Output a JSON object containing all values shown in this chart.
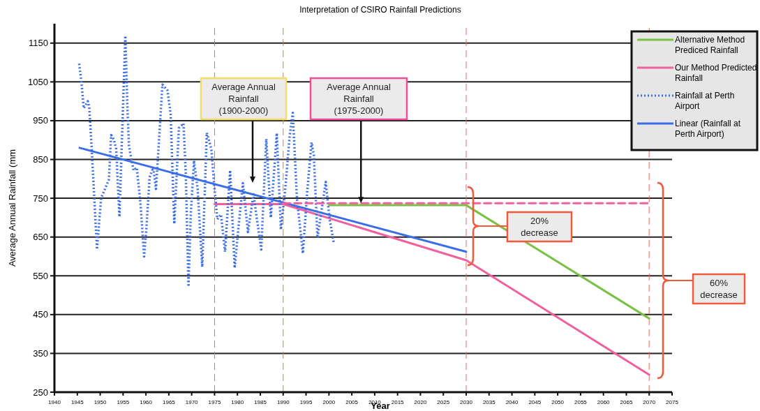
{
  "chart_data": {
    "type": "line",
    "title": "Interpretation of CSIRO Rainfall Predictions",
    "xlabel": "Year",
    "ylabel": "Average Annual Rainfall (mm",
    "xlim": [
      1940,
      2075
    ],
    "xticks": [
      1940,
      1945,
      1950,
      1955,
      1960,
      1965,
      1970,
      1975,
      1980,
      1985,
      1990,
      1995,
      2000,
      2005,
      2010,
      2015,
      2020,
      2025,
      2030,
      2035,
      2040,
      2045,
      2050,
      2055,
      2060,
      2065,
      2070,
      2075
    ],
    "ylim": [
      250,
      1200
    ],
    "yticks": [
      250,
      350,
      450,
      550,
      650,
      750,
      850,
      950,
      1050,
      1150
    ],
    "grid": "y",
    "legend": "top right",
    "series": [
      {
        "name": "Alternative Method Prediced Rainfall",
        "color": "#7ac143",
        "line_style": "solid",
        "x": [
          2000,
          2030,
          2070
        ],
        "values": [
          732,
          732,
          440
        ]
      },
      {
        "name": "Our Method Predicted Rainfall",
        "color": "#f0609e",
        "line_style": "solid",
        "x": [
          1975,
          1990,
          2030,
          2070
        ],
        "values": [
          735,
          735,
          590,
          295
        ]
      },
      {
        "name": "Rainfall at Perth Airport",
        "color": "#3a6ee8",
        "line_style": "dotted",
        "x": [
          1945.4,
          1945.9,
          1946.4,
          1947.3,
          1947.6,
          1948.1,
          1949.3,
          1950.2,
          1951.9,
          1952.4,
          1953.0,
          1953.5,
          1954.2,
          1954.7,
          1955.5,
          1956.0,
          1956.3,
          1957.3,
          1958.0,
          1958.8,
          1959.6,
          1960.1,
          1960.8,
          1961.6,
          1962.2,
          1962.9,
          1963.6,
          1964.7,
          1965.4,
          1965.9,
          1966.2,
          1967.2,
          1968.2,
          1968.7,
          1969.3,
          1969.8,
          1970.5,
          1971.3,
          1972.3,
          1973.3,
          1974.3,
          1974.9,
          1975.6,
          1976.4,
          1977.3,
          1978.4,
          1979.4,
          1980.2,
          1981.2,
          1982.3,
          1983.5,
          1985.2,
          1986.3,
          1987.3,
          1988.6,
          1989.5,
          1990.5,
          1991.4,
          1992.1,
          1993.0,
          1994.3,
          1995.2,
          1996.2,
          1996.7,
          1997.5,
          1999.3,
          2000.1,
          2001.1
        ],
        "values": [
          1097,
          1049,
          982,
          1000,
          985,
          889,
          618,
          750,
          798,
          913,
          901,
          877,
          702,
          883,
          1169,
          967,
          883,
          822,
          829,
          738,
          600,
          672,
          804,
          829,
          774,
          907,
          1043,
          1028,
          967,
          786,
          684,
          931,
          943,
          816,
          522,
          708,
          847,
          774,
          573,
          919,
          877,
          786,
          696,
          708,
          612,
          822,
          570,
          672,
          789,
          663,
          760,
          618,
          903,
          700,
          918,
          669,
          780,
          909,
          970,
          750,
          608,
          760,
          894,
          862,
          648,
          792,
          700,
          632
        ]
      },
      {
        "name": "Linear (Rainfall at Perth Airport)",
        "color": "#3a6ee8",
        "line_style": "solid",
        "x": [
          1945.5,
          2030
        ],
        "values": [
          880,
          612
        ]
      },
      {
        "color": "#f0609e",
        "line_style": "dashed",
        "x": [
          1990,
          2070
        ],
        "values": [
          737,
          737
        ]
      }
    ],
    "ref_lines": [
      {
        "axis": "x",
        "value": 1975,
        "color": "#f06a5a",
        "line_style": "dashed"
      },
      {
        "axis": "x",
        "value": 1990,
        "color": "#f06a5a",
        "line_style": "dashed"
      },
      {
        "axis": "x",
        "value": 2030,
        "color": "#f06a5a",
        "line_style": "dashed"
      },
      {
        "axis": "x",
        "value": 2070,
        "color": "#f06a5a",
        "line_style": "dashed"
      }
    ],
    "annotations": [
      "Average Annual Rainfall (1900-2000)",
      {
        "text": "Average Annual Rainfall (1975-2000)",
        "x": 2007,
        "y": 737
      },
      "20% decrease",
      "60% decrease"
    ]
  }
}
